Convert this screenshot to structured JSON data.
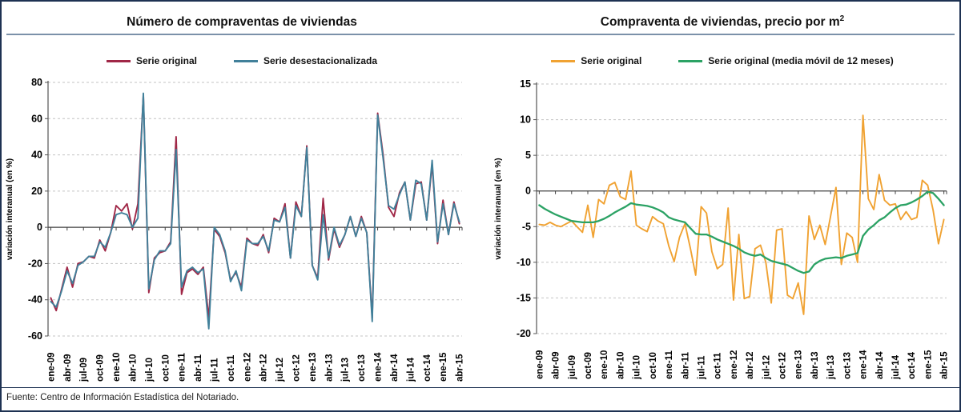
{
  "footer": {
    "source_note": "Fuente: Centro de Información Estadística del Notariado."
  },
  "chart_data": [
    {
      "type": "line",
      "title_main": "Número de compraventas de viviendas",
      "title_sup": "",
      "ylabel": "variación interanual  (en %)",
      "ylim": [
        -60,
        80
      ],
      "ytick_step": 20,
      "grid": "dashed horizontal",
      "legend_position": "top",
      "x_tick_labels": [
        "ene-09",
        "abr-09",
        "jul-09",
        "oct-09",
        "ene-10",
        "abr-10",
        "jul-10",
        "oct-10",
        "ene-11",
        "abr-11",
        "jul-11",
        "oct-11",
        "ene-12",
        "abr-12",
        "jul-12",
        "oct-12",
        "ene-13",
        "abr-13",
        "jul-13",
        "oct-13",
        "ene-14",
        "abr-14",
        "jul-14",
        "oct-14",
        "ene-15",
        "abr-15"
      ],
      "label_every_n_points": 3,
      "n_points": 76,
      "series": [
        {
          "name": "Serie original",
          "color": "#a02747",
          "values": [
            -39,
            -46,
            -34,
            -22,
            -33,
            -20,
            -19,
            -16,
            -17,
            -7,
            -13,
            -3,
            12,
            9,
            13,
            -1,
            13,
            73,
            -36,
            -17,
            -14,
            -13,
            -8,
            50,
            -37,
            -25,
            -23,
            -26,
            -22,
            -50,
            -1,
            -5,
            -14,
            -29,
            -25,
            -33,
            -6,
            -9,
            -10,
            -4,
            -14,
            5,
            3,
            13,
            -17,
            14,
            6,
            45,
            -21,
            -28,
            16,
            -18,
            -1,
            -11,
            -4,
            6,
            -5,
            6,
            -3,
            -50,
            63,
            40,
            11,
            6,
            19,
            25,
            4,
            24,
            25,
            4,
            35,
            -9,
            15,
            -4,
            14,
            2
          ]
        },
        {
          "name": "Serie desestacionalizada",
          "color": "#41809a",
          "values": [
            -41,
            -44,
            -35,
            -24,
            -31,
            -21,
            -19,
            -16,
            -16,
            -8,
            -11,
            -3,
            7,
            8,
            7,
            0,
            5,
            74,
            -34,
            -18,
            -13,
            -13,
            -9,
            43,
            -33,
            -24,
            -22,
            -25,
            -23,
            -56,
            0,
            -4,
            -13,
            -30,
            -24,
            -35,
            -7,
            -9,
            -9,
            -5,
            -13,
            4,
            3,
            11,
            -17,
            12,
            6,
            44,
            -21,
            -29,
            7,
            -17,
            0,
            -10,
            -4,
            6,
            -5,
            5,
            -3,
            -52,
            62,
            38,
            12,
            10,
            18,
            25,
            4,
            26,
            24,
            4,
            37,
            -8,
            13,
            -4,
            13,
            3
          ]
        }
      ]
    },
    {
      "type": "line",
      "title_main": "Compraventa de viviendas, precio por m",
      "title_sup": "2",
      "ylabel": "variación interanual  (en %)",
      "ylim": [
        -20,
        15
      ],
      "ytick_step": 5,
      "grid": "dashed horizontal",
      "legend_position": "top",
      "x_tick_labels": [
        "ene-09",
        "abr-09",
        "jul-09",
        "oct-09",
        "ene-10",
        "abr-10",
        "jul-10",
        "oct-10",
        "ene-11",
        "abr-11",
        "jul-11",
        "oct-11",
        "ene-12",
        "abr-12",
        "jul-12",
        "oct-12",
        "ene-13",
        "abr-13",
        "jul-13",
        "oct-13",
        "ene-14",
        "abr-14",
        "jul-14",
        "oct-14",
        "ene-15",
        "abr-15"
      ],
      "label_every_n_points": 3,
      "n_points": 76,
      "series": [
        {
          "name": "Serie original",
          "color": "#f0a232",
          "values": [
            -4.7,
            -4.8,
            -4.4,
            -4.8,
            -5.0,
            -4.6,
            -4.2,
            -5.0,
            -5.8,
            -2.0,
            -6.5,
            -1.2,
            -1.8,
            0.8,
            1.2,
            -0.8,
            -1.2,
            2.8,
            -4.8,
            -5.3,
            -5.7,
            -3.6,
            -4.2,
            -4.6,
            -7.7,
            -9.9,
            -6.5,
            -4.6,
            -8.0,
            -11.8,
            -2.2,
            -3.1,
            -8.5,
            -10.9,
            -10.3,
            -2.4,
            -15.3,
            -6.1,
            -15.1,
            -14.8,
            -8.1,
            -7.6,
            -10.0,
            -15.7,
            -5.5,
            -5.3,
            -14.6,
            -15.1,
            -12.9,
            -17.3,
            -3.5,
            -6.8,
            -4.8,
            -7.5,
            -3.5,
            0.5,
            -10.3,
            -5.9,
            -6.5,
            -10.0,
            10.6,
            -1.1,
            -2.6,
            2.3,
            -1.3,
            -2.0,
            -1.8,
            -4.0,
            -2.9,
            -4.0,
            -3.7,
            1.5,
            0.8,
            -2.7,
            -7.4,
            -4.0
          ]
        },
        {
          "name": "Serie original (media móvil de 12 meses)",
          "color": "#2ba264",
          "values": [
            -2.0,
            -2.5,
            -2.9,
            -3.3,
            -3.6,
            -3.9,
            -4.2,
            -4.3,
            -4.4,
            -4.4,
            -4.4,
            -4.2,
            -3.9,
            -3.5,
            -3.0,
            -2.6,
            -2.2,
            -1.7,
            -1.9,
            -2.0,
            -2.1,
            -2.3,
            -2.6,
            -3.0,
            -3.7,
            -4.0,
            -4.2,
            -4.4,
            -5.2,
            -6.0,
            -6.1,
            -6.1,
            -6.4,
            -6.8,
            -7.1,
            -7.4,
            -7.7,
            -8.1,
            -8.6,
            -8.9,
            -9.1,
            -8.9,
            -9.4,
            -9.8,
            -10.0,
            -10.2,
            -10.4,
            -10.8,
            -11.2,
            -11.5,
            -11.3,
            -10.3,
            -9.8,
            -9.5,
            -9.4,
            -9.3,
            -9.4,
            -9.1,
            -8.9,
            -8.7,
            -6.3,
            -5.4,
            -4.8,
            -4.1,
            -3.7,
            -3.0,
            -2.4,
            -2.0,
            -1.9,
            -1.6,
            -1.2,
            -0.7,
            -0.1,
            -0.3,
            -1.1,
            -2.0
          ]
        }
      ]
    }
  ]
}
